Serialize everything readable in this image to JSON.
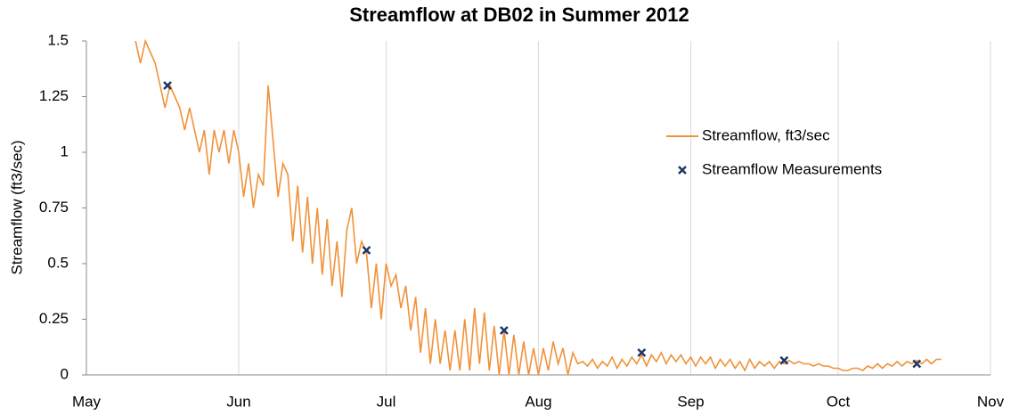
{
  "chart_data": {
    "type": "line",
    "title": "Streamflow at DB02 in Summer 2012",
    "y_label": "Streamflow (ft3/sec)",
    "xlim": [
      0,
      184
    ],
    "xticks": [
      {
        "value": 0,
        "label": "May"
      },
      {
        "value": 31,
        "label": "Jun"
      },
      {
        "value": 61,
        "label": "Jul"
      },
      {
        "value": 92,
        "label": "Aug"
      },
      {
        "value": 123,
        "label": "Sep"
      },
      {
        "value": 153,
        "label": "Oct"
      },
      {
        "value": 184,
        "label": "Nov"
      }
    ],
    "ylim": [
      0,
      1.5
    ],
    "yticks": [
      0,
      0.25,
      0.5,
      0.75,
      1,
      1.25,
      1.5
    ],
    "grid": "x",
    "series": [
      {
        "name": "Streamflow, ft3/sec",
        "type": "line",
        "color": "#f0923a",
        "x": [
          10,
          11,
          12,
          13,
          14,
          15,
          16,
          17,
          18,
          19,
          20,
          21,
          22,
          23,
          24,
          25,
          26,
          27,
          28,
          29,
          30,
          31,
          32,
          33,
          34,
          35,
          36,
          37,
          38,
          39,
          40,
          41,
          42,
          43,
          44,
          45,
          46,
          47,
          48,
          49,
          50,
          51,
          52,
          53,
          54,
          55,
          56,
          57,
          58,
          59,
          60,
          61,
          62,
          63,
          64,
          65,
          66,
          67,
          68,
          69,
          70,
          71,
          72,
          73,
          74,
          75,
          76,
          77,
          78,
          79,
          80,
          81,
          82,
          83,
          84,
          85,
          86,
          87,
          88,
          89,
          90,
          91,
          92,
          93,
          94,
          95,
          96,
          97,
          98,
          99,
          100,
          101,
          102,
          103,
          104,
          105,
          106,
          107,
          108,
          109,
          110,
          111,
          112,
          113,
          114,
          115,
          116,
          117,
          118,
          119,
          120,
          121,
          122,
          123,
          124,
          125,
          126,
          127,
          128,
          129,
          130,
          131,
          132,
          133,
          134,
          135,
          136,
          137,
          138,
          139,
          140,
          141,
          142,
          143,
          144,
          145,
          146,
          147,
          148,
          149,
          150,
          151,
          152,
          153,
          154,
          155,
          156,
          157,
          158,
          159,
          160,
          161,
          162,
          163,
          164,
          165,
          166,
          167,
          168,
          169,
          170,
          171,
          172,
          173,
          174
        ],
        "values": [
          1.5,
          1.4,
          1.5,
          1.45,
          1.4,
          1.3,
          1.2,
          1.3,
          1.25,
          1.2,
          1.1,
          1.2,
          1.1,
          1.0,
          1.1,
          0.9,
          1.1,
          1.0,
          1.1,
          0.95,
          1.1,
          1.0,
          0.8,
          0.95,
          0.75,
          0.9,
          0.85,
          1.3,
          1.05,
          0.8,
          0.95,
          0.9,
          0.6,
          0.85,
          0.55,
          0.8,
          0.5,
          0.75,
          0.45,
          0.7,
          0.4,
          0.6,
          0.35,
          0.65,
          0.75,
          0.5,
          0.6,
          0.55,
          0.3,
          0.5,
          0.25,
          0.5,
          0.4,
          0.45,
          0.3,
          0.4,
          0.2,
          0.35,
          0.1,
          0.3,
          0.05,
          0.25,
          0.05,
          0.2,
          0.02,
          0.2,
          0.02,
          0.25,
          0.02,
          0.3,
          0.05,
          0.28,
          0.02,
          0.22,
          0.0,
          0.2,
          0.0,
          0.18,
          0.0,
          0.15,
          0.0,
          0.12,
          0.0,
          0.12,
          0.02,
          0.15,
          0.05,
          0.12,
          0.0,
          0.1,
          0.05,
          0.06,
          0.04,
          0.07,
          0.03,
          0.06,
          0.04,
          0.08,
          0.03,
          0.07,
          0.04,
          0.08,
          0.05,
          0.09,
          0.04,
          0.09,
          0.06,
          0.1,
          0.05,
          0.09,
          0.06,
          0.09,
          0.05,
          0.08,
          0.04,
          0.08,
          0.05,
          0.08,
          0.03,
          0.07,
          0.04,
          0.07,
          0.03,
          0.06,
          0.02,
          0.07,
          0.03,
          0.06,
          0.04,
          0.06,
          0.03,
          0.06,
          0.05,
          0.065,
          0.05,
          0.06,
          0.05,
          0.05,
          0.04,
          0.05,
          0.04,
          0.04,
          0.03,
          0.03,
          0.02,
          0.02,
          0.03,
          0.03,
          0.02,
          0.04,
          0.03,
          0.05,
          0.03,
          0.05,
          0.04,
          0.06,
          0.04,
          0.06,
          0.05,
          0.065,
          0.05,
          0.07,
          0.05,
          0.07,
          0.07
        ]
      },
      {
        "name": "Streamflow Measurements",
        "type": "scatter",
        "color": "#1f3864",
        "x": [
          16.5,
          57,
          85,
          113,
          142,
          169
        ],
        "values": [
          1.3,
          0.56,
          0.2,
          0.1,
          0.065,
          0.05
        ]
      }
    ]
  }
}
